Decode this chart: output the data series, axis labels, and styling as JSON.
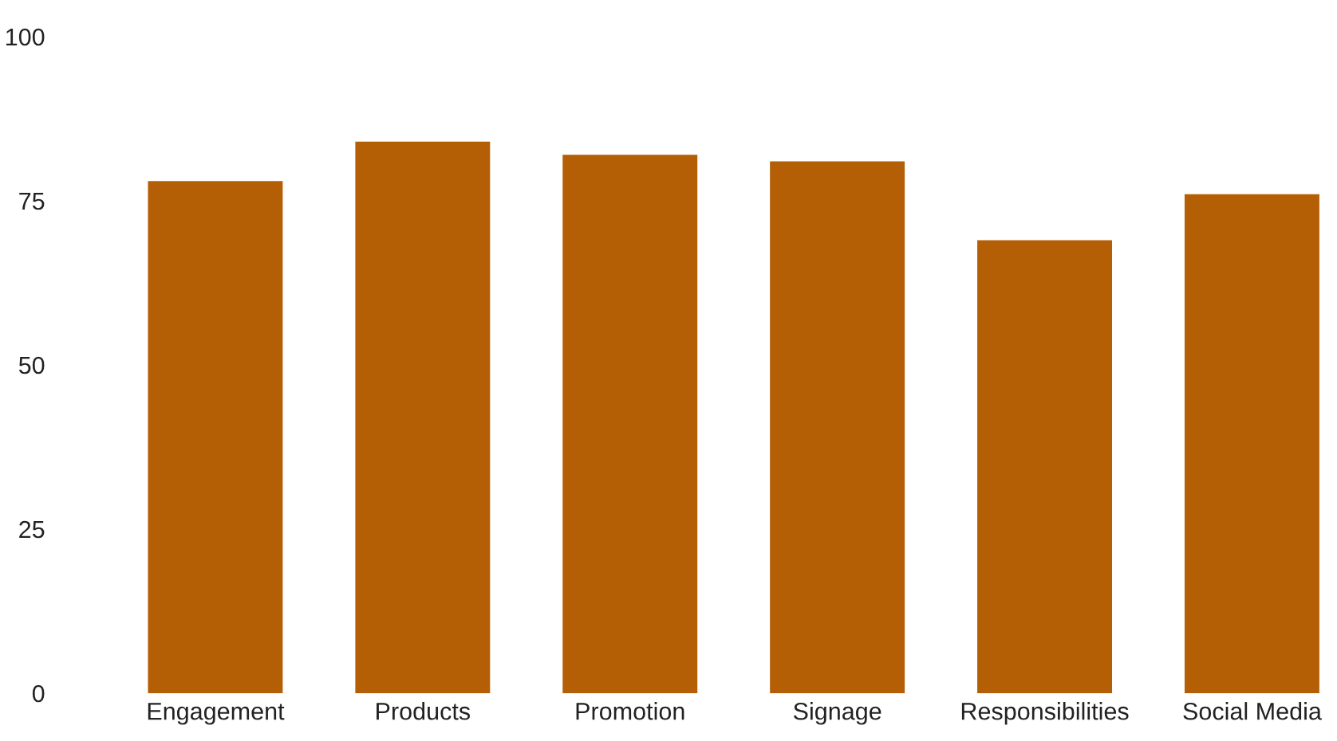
{
  "chart_data": {
    "type": "bar",
    "categories": [
      "Engagement",
      "Products",
      "Promotion",
      "Signage",
      "Responsibilities",
      "Social Media"
    ],
    "values": [
      78,
      84,
      82,
      81,
      69,
      76
    ],
    "color": "#b45f06",
    "ylim": [
      0,
      100
    ],
    "yticks": [
      0,
      25,
      50,
      75,
      100
    ],
    "grid": false,
    "legend": false
  }
}
